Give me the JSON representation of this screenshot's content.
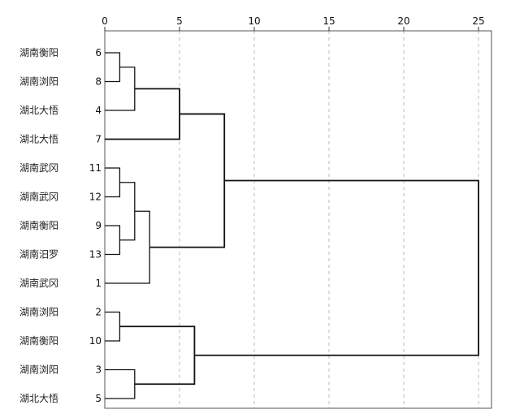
{
  "chart_data": {
    "type": "dendrogram",
    "title": "",
    "xlabel": "",
    "ylabel": "",
    "xlim": [
      0,
      25
    ],
    "x_ticks": [
      0,
      5,
      10,
      15,
      20,
      25
    ],
    "grid": "vertical dashed",
    "legend": "none",
    "leaves": [
      {
        "id": "6",
        "name": "湖南衡阳"
      },
      {
        "id": "8",
        "name": "湖南浏阳"
      },
      {
        "id": "4",
        "name": "湖北大悟"
      },
      {
        "id": "7",
        "name": "湖北大悟"
      },
      {
        "id": "11",
        "name": "湖南武冈"
      },
      {
        "id": "12",
        "name": "湖南武冈"
      },
      {
        "id": "9",
        "name": "湖南衡阳"
      },
      {
        "id": "13",
        "name": "湖南汨罗"
      },
      {
        "id": "1",
        "name": "湖南武冈"
      },
      {
        "id": "2",
        "name": "湖南浏阳"
      },
      {
        "id": "10",
        "name": "湖南衡阳"
      },
      {
        "id": "3",
        "name": "湖南浏阳"
      },
      {
        "id": "5",
        "name": "湖北大悟"
      }
    ],
    "merges": [
      {
        "left": "6",
        "right": "8",
        "distance": 1.0,
        "node": "A"
      },
      {
        "left": "A",
        "right": "4",
        "distance": 2.0,
        "node": "B"
      },
      {
        "left": "B",
        "right": "7",
        "distance": 5.0,
        "node": "C"
      },
      {
        "left": "11",
        "right": "12",
        "distance": 1.0,
        "node": "D"
      },
      {
        "left": "9",
        "right": "13",
        "distance": 1.0,
        "node": "E"
      },
      {
        "left": "D",
        "right": "E",
        "distance": 2.0,
        "node": "F"
      },
      {
        "left": "F",
        "right": "1",
        "distance": 3.0,
        "node": "G"
      },
      {
        "left": "C",
        "right": "G",
        "distance": 8.0,
        "node": "H"
      },
      {
        "left": "2",
        "right": "10",
        "distance": 1.0,
        "node": "I"
      },
      {
        "left": "3",
        "right": "5",
        "distance": 2.0,
        "node": "J"
      },
      {
        "left": "I",
        "right": "J",
        "distance": 6.0,
        "node": "K"
      },
      {
        "left": "H",
        "right": "K",
        "distance": 25.0,
        "node": "L"
      }
    ]
  }
}
